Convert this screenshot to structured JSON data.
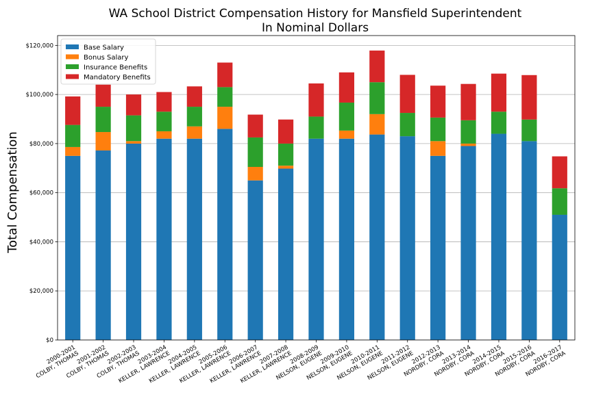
{
  "chart_data": {
    "type": "bar",
    "stacked": true,
    "title": "WA School District Compensation History for Mansfield Superintendent",
    "subtitle": "In Nominal Dollars",
    "xlabel": "",
    "ylabel": "Total Compensation",
    "ylim": [
      0,
      124000
    ],
    "yticks": [
      0,
      20000,
      40000,
      60000,
      80000,
      100000,
      120000
    ],
    "ytick_labels": [
      "$0",
      "$20,000",
      "$40,000",
      "$60,000",
      "$80,000",
      "$100,000",
      "$120,000"
    ],
    "grid": true,
    "legend_position": "top-left",
    "categories": [
      [
        "2000-2001",
        "COLBY, THOMAS"
      ],
      [
        "2001-2002",
        "COLBY, THOMAS"
      ],
      [
        "2002-2003",
        "COLBY, THOMAS"
      ],
      [
        "2003-2004",
        "KELLER, LAWRENCE"
      ],
      [
        "2004-2005",
        "KELLER, LAWRENCE"
      ],
      [
        "2005-2006",
        "KELLER, LAWRENCE"
      ],
      [
        "2006-2007",
        "KELLER, LAWRENCE"
      ],
      [
        "2007-2008",
        "KELLER, LAWRENCE"
      ],
      [
        "2008-2009",
        "NELSON, EUGENE"
      ],
      [
        "2009-2010",
        "NELSON, EUGENE"
      ],
      [
        "2010-2011",
        "NELSON, EUGENE"
      ],
      [
        "2011-2012",
        "NELSON, EUGENE"
      ],
      [
        "2012-2013",
        "NORDBY, CORA"
      ],
      [
        "2013-2014",
        "NORDBY, CORA"
      ],
      [
        "2014-2015",
        "NORDBY, CORA"
      ],
      [
        "2015-2016",
        "NORDBY, CORA"
      ],
      [
        "2016-2017",
        "NORDBY, CORA"
      ]
    ],
    "series": [
      {
        "name": "Base Salary",
        "color": "#1f77b4",
        "values": [
          75000,
          77200,
          80000,
          82000,
          82000,
          86000,
          65000,
          69800,
          82000,
          82000,
          83700,
          83000,
          75000,
          79000,
          84000,
          81000,
          51000
        ]
      },
      {
        "name": "Bonus Salary",
        "color": "#ff7f0e",
        "values": [
          3600,
          7500,
          1000,
          3000,
          5000,
          9000,
          5500,
          1200,
          0,
          3300,
          8300,
          0,
          6000,
          1000,
          0,
          0,
          0
        ]
      },
      {
        "name": "Insurance Benefits",
        "color": "#2ca02c",
        "values": [
          9000,
          10300,
          10500,
          8000,
          8000,
          8000,
          12000,
          9000,
          9000,
          11400,
          13000,
          9500,
          9600,
          9500,
          9000,
          8800,
          10800
        ]
      },
      {
        "name": "Mandatory Benefits",
        "color": "#d62728",
        "values": [
          11600,
          9000,
          8500,
          8000,
          8300,
          10000,
          9300,
          9800,
          13500,
          12300,
          12900,
          15500,
          13000,
          14800,
          15500,
          18100,
          13000
        ]
      }
    ]
  }
}
